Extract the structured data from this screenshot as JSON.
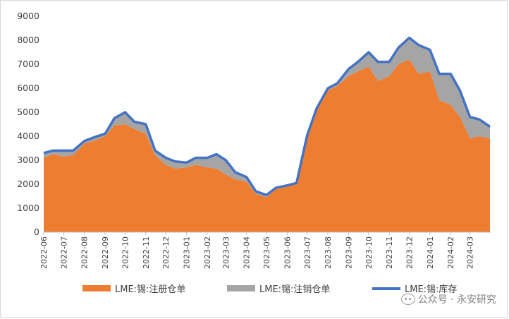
{
  "chart_data": {
    "type": "area",
    "title": "",
    "xlabel": "",
    "ylabel": "",
    "ylim": [
      0,
      9000
    ],
    "yticks": [
      0,
      1000,
      2000,
      3000,
      4000,
      5000,
      6000,
      7000,
      8000,
      9000
    ],
    "x_ticks": [
      "2022-06",
      "2022-07",
      "2022-08",
      "2022-09",
      "2022-10",
      "2022-11",
      "2022-12",
      "2023-01",
      "2023-02",
      "2023-03",
      "2023-04",
      "2023-05",
      "2023-06",
      "2023-07",
      "2023-08",
      "2023-09",
      "2023-10",
      "2023-11",
      "2023-12",
      "2024-01",
      "2024-02",
      "2024-03"
    ],
    "grid": false,
    "legend_position": "bottom",
    "x": [
      "2022-06-01",
      "2022-06-15",
      "2022-07-01",
      "2022-07-15",
      "2022-08-01",
      "2022-08-15",
      "2022-09-01",
      "2022-09-15",
      "2022-10-01",
      "2022-10-15",
      "2022-11-01",
      "2022-11-15",
      "2022-12-01",
      "2022-12-15",
      "2023-01-01",
      "2023-01-15",
      "2023-02-01",
      "2023-02-15",
      "2023-03-01",
      "2023-03-15",
      "2023-04-01",
      "2023-04-15",
      "2023-05-01",
      "2023-05-15",
      "2023-06-01",
      "2023-06-15",
      "2023-07-01",
      "2023-07-15",
      "2023-08-01",
      "2023-08-15",
      "2023-09-01",
      "2023-09-15",
      "2023-10-01",
      "2023-10-15",
      "2023-11-01",
      "2023-11-15",
      "2023-12-01",
      "2023-12-15",
      "2024-01-01",
      "2024-01-15",
      "2024-02-01",
      "2024-02-15",
      "2024-03-01",
      "2024-03-15",
      "2024-03-31"
    ],
    "series": [
      {
        "name": "LME:锡:注册仓单",
        "color": "#ed7d31",
        "kind": "area",
        "values": [
          3100,
          3250,
          3150,
          3200,
          3700,
          3800,
          4000,
          4450,
          4500,
          4300,
          4100,
          3200,
          2800,
          2650,
          2700,
          2800,
          2700,
          2650,
          2400,
          2200,
          2100,
          1600,
          1450,
          1800,
          1900,
          2000,
          4000,
          5100,
          5900,
          6100,
          6500,
          6700,
          6900,
          6300,
          6500,
          7000,
          7200,
          6600,
          6700,
          5500,
          5300,
          4800,
          3900,
          4000,
          3900
        ]
      },
      {
        "name": "LME:锡:注销仓单",
        "color": "#a5a5a5",
        "kind": "area",
        "values": [
          200,
          150,
          250,
          200,
          100,
          150,
          100,
          300,
          500,
          300,
          400,
          200,
          300,
          300,
          200,
          300,
          400,
          600,
          600,
          300,
          200,
          100,
          100,
          50,
          50,
          50,
          50,
          50,
          100,
          100,
          300,
          400,
          600,
          800,
          600,
          700,
          900,
          1200,
          900,
          1100,
          1300,
          1100,
          900,
          700,
          500
        ]
      },
      {
        "name": "LME:锡:库存",
        "color": "#4472c4",
        "kind": "line",
        "values": [
          3300,
          3400,
          3400,
          3400,
          3800,
          3950,
          4100,
          4750,
          5000,
          4600,
          4500,
          3400,
          3100,
          2950,
          2900,
          3100,
          3100,
          3250,
          3000,
          2500,
          2300,
          1700,
          1550,
          1850,
          1950,
          2050,
          4050,
          5150,
          6000,
          6200,
          6800,
          7100,
          7500,
          7100,
          7100,
          7700,
          8100,
          7800,
          7600,
          6600,
          6600,
          5900,
          4800,
          4700,
          4400
        ]
      }
    ]
  },
  "watermark": {
    "text": "公众号 · 永安研究",
    "icon": "wechat-icon"
  }
}
